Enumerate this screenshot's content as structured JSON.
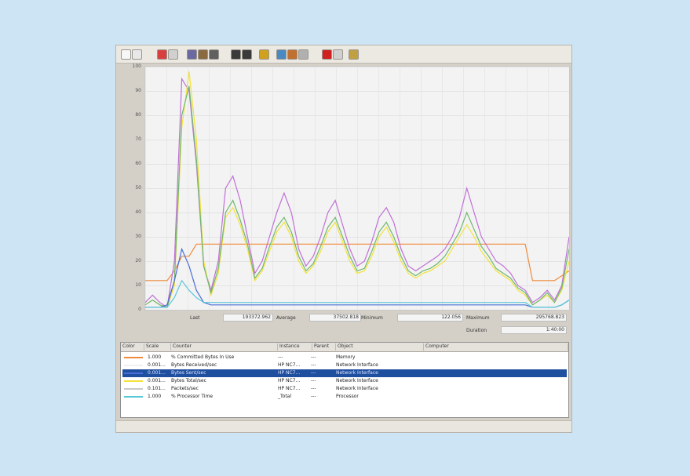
{
  "toolbar": {
    "icons": [
      "new-counter-set-icon",
      "clear-display-icon",
      "view-current-activity-icon",
      "view-log-data-icon",
      "view-graph-icon",
      "view-histogram-icon",
      "view-report-icon",
      "add-counter-icon",
      "delete-counter-icon",
      "highlight-icon",
      "copy-properties-icon",
      "paste-counter-list-icon",
      "properties-icon",
      "freeze-display-icon",
      "update-data-icon",
      "help-icon"
    ]
  },
  "chart": {
    "y_ticks": [
      "100",
      "90",
      "80",
      "70",
      "60",
      "50",
      "40",
      "30",
      "20",
      "10",
      "0"
    ],
    "colors": {
      "orange": "#f08a3a",
      "white": "#f6f6f6",
      "blue": "#4a6ed8",
      "yellow": "#f2e23a",
      "magenta": "#c070d8",
      "green": "#70b870",
      "cyan": "#58c8d8",
      "pink": "#f0a0a0"
    }
  },
  "chart_data": {
    "type": "line",
    "ylim": [
      0,
      100
    ],
    "grid": true,
    "series": [
      {
        "color": "#f08a3a",
        "values": [
          12,
          12,
          12,
          12,
          16,
          22,
          22,
          27,
          27,
          27,
          27,
          27,
          27,
          27,
          27,
          27,
          27,
          27,
          27,
          27,
          27,
          27,
          27,
          27,
          27,
          27,
          27,
          27,
          27,
          27,
          27,
          27,
          27,
          27,
          27,
          27,
          27,
          27,
          27,
          27,
          27,
          27,
          27,
          27,
          27,
          27,
          27,
          27,
          27,
          27,
          27,
          27,
          27,
          12,
          12,
          12,
          12,
          14,
          16
        ]
      },
      {
        "color": "#c070d8",
        "values": [
          3,
          6,
          3,
          1,
          20,
          95,
          90,
          60,
          18,
          8,
          20,
          50,
          55,
          45,
          30,
          15,
          20,
          30,
          40,
          48,
          40,
          25,
          18,
          22,
          30,
          40,
          45,
          35,
          25,
          18,
          20,
          28,
          38,
          42,
          36,
          25,
          18,
          16,
          18,
          20,
          22,
          25,
          30,
          38,
          50,
          40,
          30,
          25,
          20,
          18,
          15,
          10,
          8,
          3,
          5,
          8,
          4,
          10,
          30
        ]
      },
      {
        "color": "#f2e23a",
        "values": [
          2,
          4,
          2,
          1,
          10,
          75,
          98,
          70,
          20,
          6,
          15,
          38,
          42,
          35,
          25,
          12,
          16,
          24,
          32,
          36,
          30,
          20,
          15,
          18,
          24,
          32,
          36,
          28,
          20,
          15,
          16,
          22,
          30,
          34,
          28,
          20,
          15,
          13,
          15,
          16,
          18,
          20,
          25,
          30,
          35,
          30,
          24,
          20,
          16,
          14,
          12,
          8,
          6,
          2,
          4,
          6,
          3,
          8,
          20
        ]
      },
      {
        "color": "#70b870",
        "values": [
          2,
          4,
          2,
          1,
          12,
          80,
          92,
          62,
          18,
          7,
          17,
          40,
          45,
          37,
          27,
          13,
          17,
          26,
          34,
          38,
          32,
          22,
          16,
          19,
          26,
          34,
          38,
          30,
          22,
          16,
          17,
          24,
          32,
          36,
          30,
          22,
          16,
          14,
          16,
          17,
          19,
          22,
          27,
          32,
          40,
          33,
          26,
          22,
          17,
          15,
          13,
          9,
          7,
          2,
          4,
          7,
          3,
          9,
          25
        ]
      },
      {
        "color": "#4a6ed8",
        "values": [
          1,
          1,
          1,
          2,
          12,
          25,
          18,
          8,
          3,
          2,
          2,
          2,
          2,
          2,
          2,
          2,
          2,
          2,
          2,
          2,
          2,
          2,
          2,
          2,
          2,
          2,
          2,
          2,
          2,
          2,
          2,
          2,
          2,
          2,
          2,
          2,
          2,
          2,
          2,
          2,
          2,
          2,
          2,
          2,
          2,
          2,
          2,
          2,
          2,
          2,
          2,
          2,
          2,
          1,
          1,
          1,
          1,
          2,
          4
        ]
      },
      {
        "color": "#58c8d8",
        "values": [
          1,
          1,
          1,
          1,
          5,
          12,
          8,
          5,
          3,
          3,
          3,
          3,
          3,
          3,
          3,
          3,
          3,
          3,
          3,
          3,
          3,
          3,
          3,
          3,
          3,
          3,
          3,
          3,
          3,
          3,
          3,
          3,
          3,
          3,
          3,
          3,
          3,
          3,
          3,
          3,
          3,
          3,
          3,
          3,
          3,
          3,
          3,
          3,
          3,
          3,
          3,
          3,
          3,
          1,
          1,
          1,
          1,
          2,
          4
        ]
      }
    ]
  },
  "stats": {
    "last_label": "Last",
    "last_value": "193372.962",
    "avg_label": "Average",
    "avg_value": "37502.818",
    "min_label": "Minimum",
    "min_value": "122.056",
    "max_label": "Maximum",
    "max_value": "295768.823",
    "dur_label": "Duration",
    "dur_value": "1:40:00"
  },
  "table": {
    "headers": [
      "Color",
      "Scale",
      "Counter",
      "Instance",
      "Parent",
      "Object",
      "Computer"
    ],
    "rows": [
      {
        "color": "#f08a3a",
        "scale": "1.000",
        "counter": "% Committed Bytes In Use",
        "instance": "---",
        "parent": "---",
        "object": "Memory",
        "selected": false
      },
      {
        "color": "#f0f0f0",
        "scale": "0.001...",
        "counter": "Bytes Received/sec",
        "instance": "HP NC7...",
        "parent": "---",
        "object": "Network Interface",
        "selected": false
      },
      {
        "color": "#4a6ed8",
        "scale": "0.001...",
        "counter": "Bytes Sent/sec",
        "instance": "HP NC7...",
        "parent": "---",
        "object": "Network Interface",
        "selected": true
      },
      {
        "color": "#f2e23a",
        "scale": "0.001...",
        "counter": "Bytes Total/sec",
        "instance": "HP NC7...",
        "parent": "---",
        "object": "Network Interface",
        "selected": false
      },
      {
        "color": "#c8c8c8",
        "scale": "0.101...",
        "counter": "Packets/sec",
        "instance": "HP NC7...",
        "parent": "---",
        "object": "Network Interface",
        "selected": false
      },
      {
        "color": "#58c8d8",
        "scale": "1.000",
        "counter": "% Processor Time",
        "instance": "_Total",
        "parent": "---",
        "object": "Processor",
        "selected": false
      }
    ]
  }
}
